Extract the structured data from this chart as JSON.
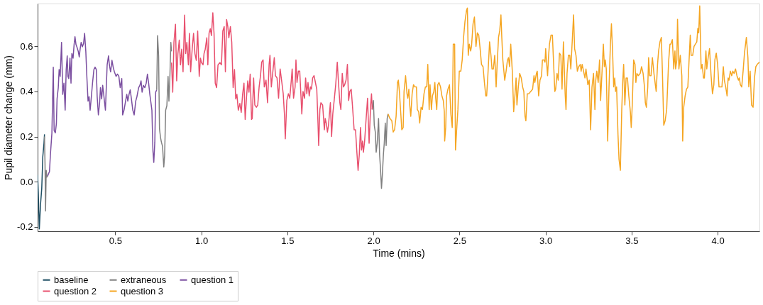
{
  "chart_data": {
    "type": "line",
    "xlabel": "Time (mins)",
    "ylabel": "Pupil diameter change (mm)",
    "xlim": [
      0.049,
      4.243
    ],
    "ylim": [
      -0.22,
      0.79
    ],
    "xticks": [
      0.5,
      {
        "value": 1,
        "label": "1.0"
      },
      1.5,
      {
        "value": 2,
        "label": "2.0"
      },
      2.5,
      {
        "value": 3,
        "label": "3.0"
      },
      3.5,
      {
        "value": 4,
        "label": "4.0"
      }
    ],
    "yticks": [
      -0.2,
      {
        "value": 0,
        "label": "0.0"
      },
      0.2,
      0.4,
      0.6
    ],
    "grid": false,
    "legend": "bottom",
    "marker": "none",
    "line_style": "solid",
    "series": [
      {
        "name": "baseline",
        "color": "#1d4e63",
        "x": [
          0.049,
          0.053,
          0.059,
          0.066,
          0.073,
          0.079,
          0.086,
          0.089
        ],
        "values": [
          0.03,
          -0.05,
          -0.21,
          -0.1,
          -0.03,
          0.11,
          0.17,
          0.21
        ]
      },
      {
        "name": "extraneous",
        "color": "#808080",
        "x": [
          0.089,
          0.092,
          0.095,
          0.099,
          0.103,
          0.107,
          0.108,
          0.741,
          0.746,
          0.752,
          0.757,
          0.763,
          0.768,
          0.775,
          0.782,
          0.787,
          0.793,
          0.8,
          0.807,
          0.812,
          0.818,
          0.823,
          0.827,
          0.828,
          1.993,
          2.0,
          2.005,
          2.011,
          2.016,
          2.022,
          2.03,
          2.036,
          2.041,
          2.047,
          2.052,
          2.058,
          2.063,
          2.069,
          2.074,
          2.08,
          2.085
        ],
        "values": [
          0.2,
          0.08,
          -0.13,
          0.05,
          0.02,
          0.025,
          null,
          0.407,
          0.648,
          0.558,
          0.236,
          0.196,
          0.176,
          0.156,
          0.065,
          0.116,
          0.317,
          0.337,
          0.467,
          0.357,
          0.477,
          0.618,
          0.578,
          null,
          0.32,
          0.36,
          0.25,
          0.22,
          0.13,
          0.17,
          0.28,
          0.12,
          0.06,
          -0.03,
          0.03,
          0.12,
          0.17,
          0.26,
          0.16,
          0.28,
          0.3
        ]
      },
      {
        "name": "question 1",
        "color": "#7b4fa0",
        "x": [
          0.107,
          0.118,
          0.123,
          0.132,
          0.14,
          0.145,
          0.152,
          0.158,
          0.162,
          0.169,
          0.174,
          0.18,
          0.188,
          0.195,
          0.202,
          0.209,
          0.215,
          0.221,
          0.225,
          0.23,
          0.237,
          0.243,
          0.248,
          0.255,
          0.261,
          0.266,
          0.272,
          0.277,
          0.285,
          0.291,
          0.296,
          0.302,
          0.309,
          0.316,
          0.322,
          0.329,
          0.335,
          0.342,
          0.348,
          0.354,
          0.359,
          0.368,
          0.376,
          0.383,
          0.39,
          0.395,
          0.402,
          0.409,
          0.414,
          0.421,
          0.427,
          0.433,
          0.443,
          0.453,
          0.461,
          0.466,
          0.473,
          0.481,
          0.488,
          0.495,
          0.505,
          0.513,
          0.521,
          0.529,
          0.538,
          0.543,
          0.551,
          0.56,
          0.567,
          0.573,
          0.58,
          0.587,
          0.594,
          0.602,
          0.61,
          0.619,
          0.626,
          0.636,
          0.643,
          0.65,
          0.656,
          0.664,
          0.672,
          0.68,
          0.687,
          0.694,
          0.701,
          0.708,
          0.713,
          0.719,
          0.724,
          0.73,
          0.735,
          0.741
        ],
        "values": [
          0.025,
          0.045,
          0.116,
          0.216,
          0.508,
          0.227,
          0.216,
          0.257,
          0.367,
          0.417,
          0.497,
          0.467,
          0.618,
          0.387,
          0.437,
          0.317,
          0.497,
          0.558,
          0.467,
          0.457,
          0.548,
          0.437,
          0.568,
          0.548,
          0.608,
          0.643,
          0.608,
          0.598,
          0.578,
          0.553,
          0.588,
          0.618,
          0.598,
          0.613,
          0.658,
          0.578,
          0.467,
          0.357,
          0.377,
          0.317,
          0.357,
          0.437,
          0.497,
          0.508,
          0.497,
          0.377,
          0.296,
          0.347,
          0.417,
          0.367,
          0.427,
          0.387,
          0.317,
          0.518,
          0.558,
          0.518,
          0.487,
          0.538,
          0.508,
          0.487,
          0.467,
          0.477,
          0.467,
          0.417,
          0.457,
          0.296,
          0.317,
          0.357,
          0.387,
          0.357,
          0.387,
          0.407,
          0.367,
          0.317,
          0.296,
          0.357,
          0.377,
          0.417,
          0.427,
          0.447,
          0.397,
          0.427,
          0.417,
          0.437,
          0.477,
          0.437,
          0.387,
          0.347,
          0.317,
          0.136,
          0.085,
          0.176,
          0.397,
          0.407
        ]
      },
      {
        "name": "question 2",
        "color": "#e8506e",
        "x": [
          0.827,
          0.834,
          0.841,
          0.85,
          0.857,
          0.864,
          0.872,
          0.879,
          0.886,
          0.894,
          0.903,
          0.909,
          0.916,
          0.925,
          0.931,
          0.938,
          0.947,
          0.955,
          0.963,
          0.971,
          0.979,
          0.988,
          0.995,
          1.001,
          1.01,
          1.016,
          1.023,
          1.032,
          1.038,
          1.045,
          1.052,
          1.059,
          1.067,
          1.074,
          1.081,
          1.089,
          1.097,
          1.108,
          1.117,
          1.125,
          1.133,
          1.14,
          1.147,
          1.154,
          1.16,
          1.169,
          1.177,
          1.185,
          1.193,
          1.2,
          1.207,
          1.215,
          1.224,
          1.232,
          1.24,
          1.248,
          1.255,
          1.263,
          1.27,
          1.277,
          1.284,
          1.292,
          1.296,
          1.304,
          1.311,
          1.32,
          1.328,
          1.336,
          1.344,
          1.351,
          1.359,
          1.366,
          1.376,
          1.385,
          1.394,
          1.399,
          1.407,
          1.416,
          1.424,
          1.431,
          1.44,
          1.449,
          1.458,
          1.468,
          1.476,
          1.483,
          1.488,
          1.497,
          1.506,
          1.514,
          1.523,
          1.528,
          1.536,
          1.545,
          1.55,
          1.556,
          1.564,
          1.572,
          1.579,
          1.584,
          1.591,
          1.6,
          1.606,
          1.613,
          1.62,
          1.627,
          1.634,
          1.64,
          1.647,
          1.655,
          1.663,
          1.671,
          1.678,
          1.682,
          1.689,
          1.695,
          1.705,
          1.715,
          1.72,
          1.726,
          1.733,
          1.739,
          1.75,
          1.757,
          1.764,
          1.772,
          1.781,
          1.79,
          1.797,
          1.805,
          1.811,
          1.819,
          1.826,
          1.833,
          1.841,
          1.849,
          1.856,
          1.863,
          1.871,
          1.878,
          1.888,
          1.896,
          1.904,
          1.911,
          1.918,
          1.925,
          1.931,
          1.937,
          1.942,
          1.949,
          1.956,
          1.966,
          1.975,
          1.984,
          1.989,
          1.993
        ],
        "values": [
          0.528,
          0.397,
          0.618,
          0.698,
          0.447,
          0.568,
          0.628,
          0.518,
          0.588,
          0.487,
          0.739,
          0.568,
          0.618,
          0.518,
          0.658,
          0.487,
          0.588,
          0.658,
          0.568,
          0.538,
          0.668,
          0.467,
          0.548,
          0.528,
          0.518,
          0.568,
          0.588,
          0.638,
          0.518,
          0.658,
          0.678,
          0.648,
          0.749,
          0.658,
          0.437,
          0.417,
          0.518,
          0.528,
          0.518,
          0.668,
          0.688,
          0.487,
          0.719,
          0.688,
          0.638,
          0.688,
          0.618,
          0.417,
          0.497,
          0.367,
          0.387,
          0.317,
          0.347,
          0.307,
          0.387,
          0.437,
          0.276,
          0.377,
          0.447,
          0.397,
          0.477,
          0.276,
          0.28,
          0.46,
          0.34,
          0.33,
          0.34,
          0.42,
          0.47,
          0.53,
          0.54,
          0.42,
          0.45,
          0.35,
          0.52,
          0.56,
          0.42,
          0.49,
          0.55,
          0.47,
          0.46,
          0.37,
          0.5,
          0.44,
          0.39,
          0.3,
          0.19,
          0.36,
          0.39,
          0.37,
          0.45,
          0.5,
          0.37,
          0.42,
          0.54,
          0.44,
          0.49,
          0.49,
          0.38,
          0.3,
          0.4,
          0.37,
          0.46,
          0.39,
          0.44,
          0.38,
          0.42,
          0.41,
          0.46,
          0.47,
          0.44,
          0.41,
          0.26,
          0.16,
          0.32,
          0.35,
          0.34,
          0.23,
          0.28,
          0.26,
          0.22,
          0.25,
          0.35,
          0.2,
          0.3,
          0.36,
          0.43,
          0.53,
          0.44,
          0.35,
          0.32,
          0.48,
          0.42,
          0.43,
          0.45,
          0.52,
          0.36,
          0.4,
          0.41,
          0.34,
          0.23,
          0.23,
          0.13,
          0.05,
          0.12,
          0.24,
          0.14,
          0.18,
          0.13,
          0.18,
          0.26,
          0.37,
          0.17,
          0.34,
          0.39,
          0.32
        ]
      },
      {
        "name": "question 3",
        "color": "#f5a623",
        "x": [
          2.085,
          2.096,
          2.107,
          2.115,
          2.123,
          2.132,
          2.14,
          2.145,
          2.151,
          2.156,
          2.165,
          2.173,
          2.178,
          2.187,
          2.195,
          2.2,
          2.206,
          2.211,
          2.217,
          2.225,
          2.233,
          2.241,
          2.25,
          2.255,
          2.263,
          2.269,
          2.277,
          2.285,
          2.294,
          2.302,
          2.31,
          2.316,
          2.324,
          2.329,
          2.337,
          2.343,
          2.351,
          2.357,
          2.362,
          2.368,
          2.374,
          2.381,
          2.39,
          2.398,
          2.406,
          2.412,
          2.414,
          2.42,
          2.425,
          2.433,
          2.442,
          2.45,
          2.458,
          2.464,
          2.472,
          2.477,
          2.483,
          2.491,
          2.499,
          2.508,
          2.516,
          2.524,
          2.532,
          2.541,
          2.546,
          2.551,
          2.557,
          2.565,
          2.57,
          2.579,
          2.587,
          2.596,
          2.604,
          2.612,
          2.62,
          2.628,
          2.637,
          2.645,
          2.653,
          2.658,
          2.665,
          2.675,
          2.683,
          2.689,
          2.697,
          2.705,
          2.713,
          2.719,
          2.727,
          2.734,
          2.741,
          2.746,
          2.752,
          2.763,
          2.771,
          2.779,
          2.785,
          2.791,
          2.798,
          2.807,
          2.815,
          2.823,
          2.829,
          2.834,
          2.842,
          2.85,
          2.859,
          2.867,
          2.874,
          2.881,
          2.886,
          2.894,
          2.903,
          2.914,
          2.925,
          2.933,
          2.938,
          2.947,
          2.952,
          2.96,
          2.968,
          2.977,
          2.982,
          2.99,
          2.997,
          3.001,
          3.007,
          3.012,
          3.018,
          3.023,
          3.032,
          3.04,
          3.045,
          3.054,
          3.059,
          3.067,
          3.074,
          3.081,
          3.089,
          3.096,
          3.104,
          3.114,
          3.119,
          3.125,
          3.133,
          3.141,
          3.147,
          3.155,
          3.163,
          3.169,
          3.177,
          3.185,
          3.193,
          3.202,
          3.207,
          3.213,
          3.221,
          3.229,
          3.235,
          3.246,
          3.254,
          3.262,
          3.27,
          3.279,
          3.287,
          3.292,
          3.298,
          3.306,
          3.314,
          3.32,
          3.328,
          3.336,
          3.342,
          3.347,
          3.353,
          3.361,
          3.369,
          3.377,
          3.383,
          3.39,
          3.396,
          3.402,
          3.407,
          3.413,
          3.421,
          3.427,
          3.435,
          3.443,
          3.449,
          3.454,
          3.461,
          3.468,
          3.476,
          3.484,
          3.493,
          3.498,
          3.504,
          3.512,
          3.52,
          3.525,
          3.531,
          3.539,
          3.55,
          3.558,
          3.567,
          3.575,
          3.58,
          3.586,
          3.594,
          3.599,
          3.605,
          3.613,
          3.621,
          3.63,
          3.638,
          3.643,
          3.651,
          3.657,
          3.665,
          3.673,
          3.679,
          3.687,
          3.695,
          3.704,
          3.715,
          3.723,
          3.728,
          3.737,
          3.745,
          3.752,
          3.756,
          3.763,
          3.767,
          3.775,
          3.783,
          3.792,
          3.797,
          3.803,
          3.811,
          3.819,
          3.827,
          3.833,
          3.841,
          3.846,
          3.855,
          3.863,
          3.871,
          3.879,
          3.885,
          3.89,
          3.896,
          3.904,
          3.91,
          3.918,
          3.923,
          3.932,
          3.937,
          3.945,
          3.953,
          3.962,
          3.97,
          3.978,
          3.984,
          3.992,
          4.0,
          4.008,
          4.016,
          4.025,
          4.033,
          4.039,
          4.047,
          4.055,
          4.061,
          4.066,
          4.074,
          4.082,
          4.088,
          4.096,
          4.104,
          4.112,
          4.121,
          4.126,
          4.132,
          4.14,
          4.148,
          4.156,
          4.167,
          4.176,
          4.181,
          4.189,
          4.197,
          4.206,
          4.214,
          4.222,
          4.23,
          4.243
        ],
        "values": [
          0.3,
          0.28,
          0.27,
          0.22,
          0.23,
          0.29,
          0.44,
          0.45,
          0.4,
          0.34,
          0.23,
          0.24,
          0.4,
          0.47,
          0.39,
          0.37,
          0.41,
          0.34,
          0.29,
          0.39,
          0.43,
          0.42,
          0.42,
          0.32,
          0.31,
          0.26,
          0.33,
          0.32,
          0.39,
          0.42,
          0.42,
          0.52,
          0.32,
          0.43,
          0.32,
          0.38,
          0.4,
          0.44,
          0.37,
          0.32,
          0.43,
          0.44,
          0.42,
          0.38,
          0.36,
          0.31,
          0.18,
          0.24,
          0.38,
          0.41,
          0.43,
          0.3,
          0.24,
          0.61,
          0.61,
          0.14,
          0.22,
          0.32,
          0.49,
          0.49,
          0.54,
          0.64,
          0.71,
          0.76,
          0.77,
          0.56,
          0.61,
          0.58,
          0.6,
          0.7,
          0.73,
          0.6,
          0.66,
          0.65,
          0.59,
          0.52,
          0.51,
          0.44,
          0.38,
          0.38,
          0.47,
          0.62,
          0.56,
          0.5,
          0.5,
          0.56,
          0.42,
          0.52,
          0.64,
          0.67,
          0.74,
          0.64,
          0.54,
          0.45,
          0.49,
          0.54,
          0.55,
          0.51,
          0.61,
          0.49,
          0.31,
          0.39,
          0.46,
          0.34,
          0.42,
          0.48,
          0.46,
          0.42,
          0.4,
          0.29,
          0.27,
          0.39,
          0.39,
          0.4,
          0.41,
          0.47,
          0.44,
          0.48,
          0.49,
          0.38,
          0.45,
          0.47,
          0.54,
          0.54,
          0.53,
          0.59,
          0.52,
          0.47,
          0.56,
          0.61,
          0.65,
          0.65,
          0.56,
          0.4,
          0.41,
          0.48,
          0.45,
          0.57,
          0.56,
          0.41,
          0.62,
          0.39,
          0.32,
          0.48,
          0.56,
          0.56,
          0.5,
          0.62,
          0.74,
          0.59,
          0.56,
          0.49,
          0.51,
          0.52,
          0.49,
          0.52,
          0.49,
          0.46,
          0.5,
          0.43,
          0.45,
          0.23,
          0.42,
          0.48,
          0.32,
          0.45,
          0.49,
          0.44,
          0.54,
          0.36,
          0.48,
          0.61,
          0.51,
          0.54,
          0.5,
          0.18,
          0.42,
          0.61,
          0.7,
          0.57,
          0.42,
          0.46,
          0.4,
          0.42,
          0.21,
          0.1,
          0.05,
          0.32,
          0.45,
          0.52,
          0.34,
          0.46,
          0.46,
          0.38,
          0.31,
          0.24,
          0.34,
          0.54,
          0.52,
          0.44,
          0.48,
          0.47,
          0.48,
          0.51,
          0.48,
          0.42,
          0.35,
          0.33,
          0.42,
          0.55,
          0.47,
          0.47,
          0.55,
          0.48,
          0.43,
          0.4,
          0.52,
          0.58,
          0.62,
          0.64,
          0.49,
          0.25,
          0.27,
          0.32,
          0.53,
          0.61,
          0.61,
          0.63,
          0.5,
          0.58,
          0.5,
          0.54,
          0.72,
          0.5,
          0.56,
          0.47,
          0.18,
          0.33,
          0.38,
          0.41,
          0.42,
          0.52,
          0.65,
          0.56,
          0.56,
          0.6,
          0.61,
          0.62,
          0.68,
          0.66,
          0.78,
          0.5,
          0.52,
          0.46,
          0.46,
          0.58,
          0.5,
          0.55,
          0.59,
          0.47,
          0.39,
          0.43,
          0.54,
          0.57,
          0.52,
          0.42,
          0.42,
          0.42,
          0.51,
          0.45,
          0.42,
          0.38,
          0.46,
          0.45,
          0.49,
          0.47,
          0.49,
          0.48,
          0.5,
          0.47,
          0.45,
          0.46,
          0.43,
          0.42,
          0.49,
          0.57,
          0.64,
          0.55,
          0.42,
          0.49,
          0.34,
          0.33,
          0.46,
          0.51,
          0.52,
          0.53
        ]
      }
    ]
  }
}
